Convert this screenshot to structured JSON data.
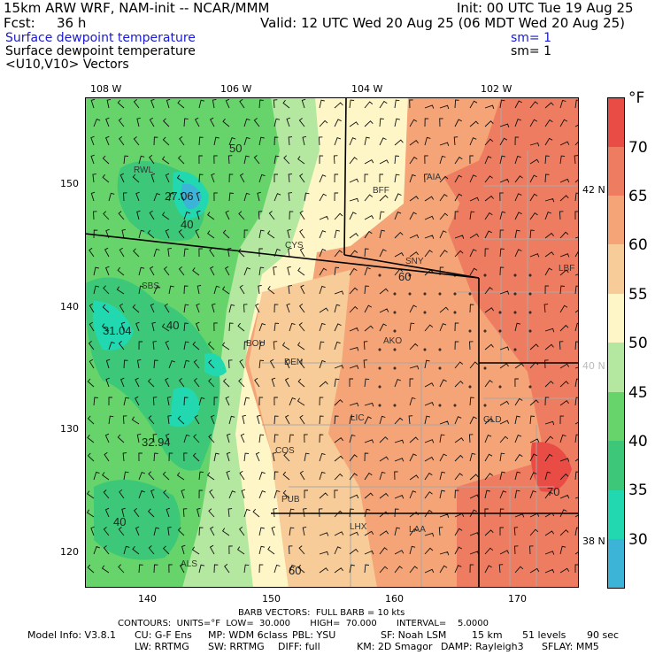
{
  "header": {
    "model": "15km ARW WRF, NAM-init -- NCAR/MMM",
    "init": "Init: 00 UTC Tue 19 Aug 25",
    "fcst_label": "Fcst:",
    "fcst_value": "36 h",
    "valid": "Valid: 12 UTC Wed 20 Aug 25 (06 MDT Wed 20 Aug 25)",
    "line3_left": "Surface dewpoint temperature",
    "line3_right": "sm= 1",
    "line4_left": "Surface dewpoint temperature",
    "line4_right": "sm= 1",
    "line5_left": "<U10,V10> Vectors"
  },
  "colors": {
    "title_blue": "#1a1ad0",
    "band_25_30": "#3cb4d8",
    "band_30_35": "#22d8b0",
    "band_35_40": "#3cc878",
    "band_40_45": "#66d46a",
    "band_45_50": "#b4e8a0",
    "band_50_55": "#fff6c8",
    "band_55_60": "#f8cc98",
    "band_60_65": "#f4a476",
    "band_65_70": "#ee7c60",
    "band_70_75": "#e84c44"
  },
  "map": {
    "top_lon_labels": [
      "108 W",
      "106 W",
      "104 W",
      "102 W"
    ],
    "right_lat_labels": [
      "42 N",
      "40 N",
      "38 N"
    ],
    "left_y_ticks": [
      "150",
      "140",
      "130",
      "120"
    ],
    "bottom_x_ticks": [
      "140",
      "150",
      "160",
      "170"
    ],
    "stations": [
      "RWL",
      "BFF",
      "AIA",
      "CYS",
      "SNY",
      "LBF",
      "SBS",
      "AKO",
      "BOU",
      "DEN",
      "LIC",
      "GLD",
      "COS",
      "PUB",
      "LHX",
      "LAA",
      "ALS"
    ],
    "contour_labels": [
      "50",
      "27.06",
      "40",
      "60",
      "31.04",
      "40",
      "32.94",
      "40",
      "60",
      "70"
    ]
  },
  "colorbar": {
    "unit": "°F",
    "labels": [
      "70",
      "65",
      "60",
      "55",
      "50",
      "45",
      "40",
      "35",
      "30"
    ]
  },
  "footer": {
    "barb_line": "BARB VECTORS:  FULL BARB = 10 kts",
    "contours_line": "CONTOURS:  UNITS=°F  LOW=  30.000       HIGH=  70.000       INTERVAL=    5.0000",
    "model_info_label": "Model Info: V3.8.1",
    "cu": "CU: G-F Ens",
    "mp": "MP: WDM 6class",
    "pbl": "PBL: YSU",
    "sf": "SF: Noah LSM",
    "res": "15 km",
    "levels": "51 levels",
    "dt": "90 sec",
    "lw": "LW: RRTMG",
    "sw": "SW: RRTMG",
    "diff": "DIFF: full",
    "km": "KM: 2D Smagor",
    "damp": "DAMP: Rayleigh3",
    "sflay": "SFLAY: MM5"
  }
}
